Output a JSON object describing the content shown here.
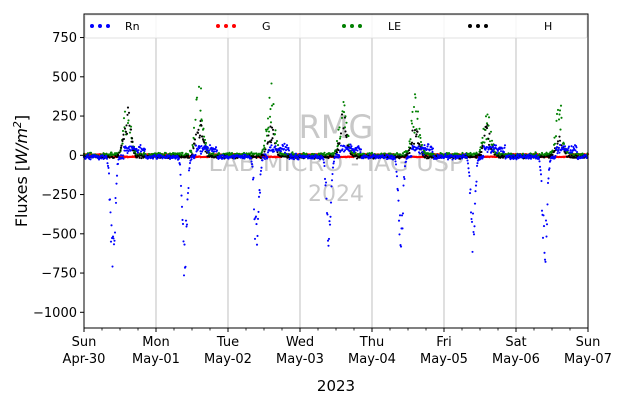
{
  "chart_data": {
    "type": "scatter",
    "title": "",
    "xlabel": "2023",
    "ylabel": "Fluxes [W/m²]",
    "ylabel_parts": {
      "base": "Fluxes [",
      "var": "W/m",
      "sup": "2",
      "close": "]"
    },
    "ylim": [
      -1100,
      900
    ],
    "yticks": [
      750,
      500,
      250,
      0,
      -250,
      -500,
      -750,
      -1000
    ],
    "ytick_labels": [
      "750",
      "500",
      "250",
      "0",
      "−250",
      "−500",
      "−750",
      "−1000"
    ],
    "xlim_days": [
      0,
      7
    ],
    "xticks": [
      {
        "day": 0,
        "line1": "Sun",
        "line2": "Apr-30"
      },
      {
        "day": 1,
        "line1": "Mon",
        "line2": "May-01"
      },
      {
        "day": 2,
        "line1": "Tue",
        "line2": "May-02"
      },
      {
        "day": 3,
        "line1": "Wed",
        "line2": "May-03"
      },
      {
        "day": 4,
        "line1": "Thu",
        "line2": "May-04"
      },
      {
        "day": 5,
        "line1": "Fri",
        "line2": "May-05"
      },
      {
        "day": 6,
        "line1": "Sat",
        "line2": "May-06"
      },
      {
        "day": 7,
        "line1": "Sun",
        "line2": "May-07"
      }
    ],
    "grid": "vertical",
    "legend_placement": "top",
    "watermark": [
      "RMG",
      "LAB MICRO - IAG USP",
      "2024"
    ],
    "series": [
      {
        "name": "Rn",
        "color": "#0000ff",
        "night_level": -10,
        "day_positive_level": 40,
        "daily_min": [
          -820,
          -830,
          -730,
          -630,
          -650,
          -640,
          -750
        ]
      },
      {
        "name": "G",
        "color": "#ff0000",
        "day_level": -10,
        "night_level": 5
      },
      {
        "name": "LE",
        "color": "#008000",
        "night_level": 5,
        "daily_max": [
          340,
          500,
          490,
          390,
          400,
          280,
          350
        ]
      },
      {
        "name": "H",
        "color": "#000000",
        "night_level": -10,
        "daily_max": [
          330,
          270,
          200,
          300,
          230,
          220,
          150
        ]
      }
    ]
  }
}
